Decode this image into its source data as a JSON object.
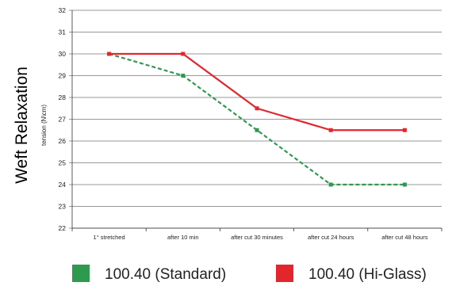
{
  "chart_data": {
    "type": "line",
    "ylabel": "Weft Relaxation",
    "yunit": "tension (N\\cm)",
    "xlabel": "",
    "ylim": [
      22,
      32
    ],
    "yticks": [
      22,
      23,
      24,
      25,
      26,
      27,
      28,
      29,
      30,
      31,
      32
    ],
    "grid": true,
    "legend_position": "bottom",
    "categories": [
      "1° stretched",
      "after 10 min",
      "after cut 30 minutes",
      "after cut 24 hours",
      "after cut 48 hours"
    ],
    "series": [
      {
        "name": "100.40 (Standard)",
        "color": "#2e9a50",
        "line_style": "dashed",
        "marker": "square",
        "values": [
          30,
          29,
          26.5,
          24,
          24
        ]
      },
      {
        "name": "100.40 (Hi-Glass)",
        "color": "#e3262e",
        "line_style": "solid",
        "marker": "square",
        "values": [
          30,
          30,
          27.5,
          26.5,
          26.5
        ]
      }
    ]
  }
}
